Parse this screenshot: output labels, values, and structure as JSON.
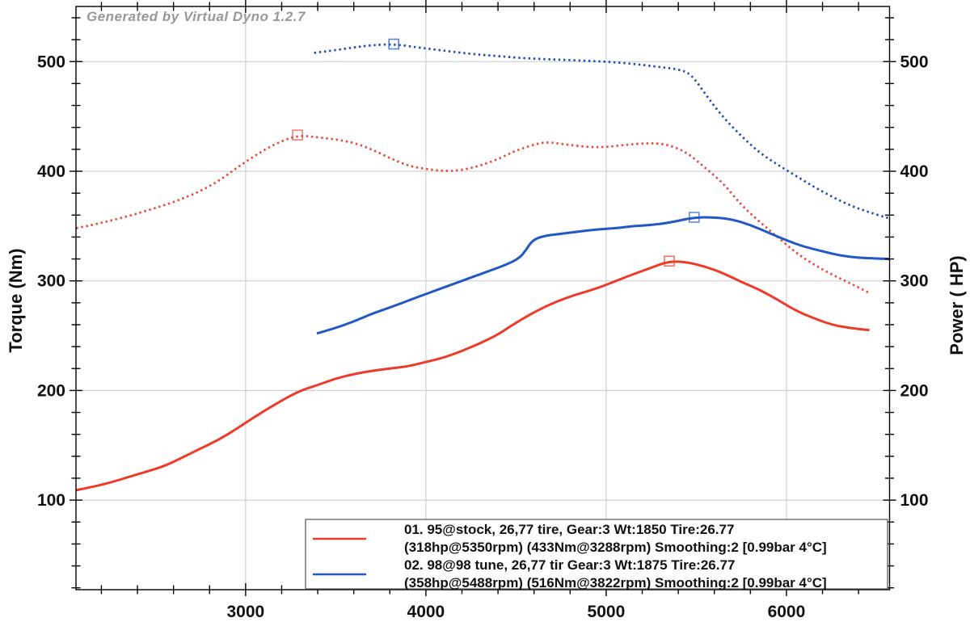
{
  "watermark": "Generated by Virtual Dyno 1.2.7",
  "axes": {
    "left_label": "Torque (Nm)",
    "right_label": "Power ( HP)",
    "x_major_ticks": [
      3000,
      4000,
      5000,
      6000
    ],
    "x_tick_labels": [
      "3000",
      "4000",
      "5000",
      "6000"
    ],
    "x_minor_step": 200,
    "y_major_ticks": [
      100,
      200,
      300,
      400,
      500
    ],
    "y_tick_labels": [
      "100",
      "200",
      "300",
      "400",
      "500"
    ],
    "y_minor_step": 20,
    "grid_color": "#c9c9c9",
    "axis_color": "#000000",
    "label_color": "#111111"
  },
  "legend": {
    "border_color": "#555555",
    "entries": [
      {
        "color": "#ee3a28",
        "line1": "01. 95@stock, 26,77 tire, Gear:3 Wt:1850 Tire:26.77",
        "line2": "(318hp@5350rpm) (433Nm@3288rpm) Smoothing:2 [0.99bar 4°C]"
      },
      {
        "color": "#2257c4",
        "line1": "02. 98@98 tune, 26,77 tir Gear:3 Wt:1875 Tire:26.77",
        "line2": "(358hp@5488rpm) (516Nm@3822rpm) Smoothing:2 [0.99bar 4°C]"
      }
    ]
  },
  "chart_data": {
    "type": "line",
    "x_axis": "Engine speed (rpm)",
    "x_range": [
      2059,
      6572
    ],
    "y_range": [
      18.3,
      550.3
    ],
    "ylabel_left": "Torque (Nm)",
    "ylabel_right": "Power ( HP)",
    "grid": true,
    "legend_position": "bottom-right",
    "series": [
      {
        "name": "run1-torque-nm",
        "label": "01. 95@stock torque (Nm)",
        "color": "#e8473a",
        "style": "dotted",
        "peak": {
          "x": 3288,
          "y": 433
        },
        "points": [
          [
            2060,
            348
          ],
          [
            2150,
            351
          ],
          [
            2250,
            355
          ],
          [
            2350,
            359
          ],
          [
            2450,
            364
          ],
          [
            2550,
            369
          ],
          [
            2650,
            375
          ],
          [
            2750,
            382
          ],
          [
            2850,
            391
          ],
          [
            2950,
            403
          ],
          [
            3050,
            414
          ],
          [
            3150,
            424
          ],
          [
            3288,
            433
          ],
          [
            3400,
            431
          ],
          [
            3500,
            429
          ],
          [
            3600,
            426
          ],
          [
            3700,
            420
          ],
          [
            3800,
            412
          ],
          [
            3900,
            405
          ],
          [
            4000,
            402
          ],
          [
            4100,
            400
          ],
          [
            4200,
            401
          ],
          [
            4300,
            405
          ],
          [
            4400,
            411
          ],
          [
            4500,
            419
          ],
          [
            4650,
            427
          ],
          [
            4750,
            425
          ],
          [
            4900,
            422
          ],
          [
            5000,
            422
          ],
          [
            5100,
            424
          ],
          [
            5250,
            426
          ],
          [
            5350,
            424
          ],
          [
            5450,
            417
          ],
          [
            5550,
            403
          ],
          [
            5650,
            389
          ],
          [
            5750,
            369
          ],
          [
            5850,
            354
          ],
          [
            5950,
            340
          ],
          [
            6050,
            326
          ],
          [
            6150,
            315
          ],
          [
            6250,
            306
          ],
          [
            6350,
            298
          ],
          [
            6460,
            289
          ]
        ]
      },
      {
        "name": "run2-torque-nm",
        "label": "02. 98@98 tune torque (Nm)",
        "color": "#1d4db4",
        "style": "dotted",
        "peak": {
          "x": 3822,
          "y": 516
        },
        "points": [
          [
            3380,
            508
          ],
          [
            3480,
            510
          ],
          [
            3600,
            513
          ],
          [
            3700,
            515
          ],
          [
            3822,
            516
          ],
          [
            3950,
            513
          ],
          [
            4050,
            511
          ],
          [
            4150,
            509
          ],
          [
            4250,
            507
          ],
          [
            4400,
            505
          ],
          [
            4550,
            503
          ],
          [
            4700,
            502
          ],
          [
            4850,
            501
          ],
          [
            5000,
            500
          ],
          [
            5150,
            498
          ],
          [
            5300,
            495
          ],
          [
            5400,
            493
          ],
          [
            5470,
            489
          ],
          [
            5560,
            468
          ],
          [
            5650,
            449
          ],
          [
            5750,
            432
          ],
          [
            5850,
            417
          ],
          [
            5950,
            406
          ],
          [
            6050,
            396
          ],
          [
            6150,
            386
          ],
          [
            6250,
            377
          ],
          [
            6350,
            369
          ],
          [
            6450,
            363
          ],
          [
            6570,
            357
          ]
        ]
      },
      {
        "name": "run1-power-hp",
        "label": "01. 95@stock power (HP)",
        "color": "#ee3a28",
        "style": "solid",
        "peak": {
          "x": 5350,
          "y": 318
        },
        "points": [
          [
            2060,
            109
          ],
          [
            2150,
            112
          ],
          [
            2250,
            116
          ],
          [
            2350,
            121
          ],
          [
            2450,
            126
          ],
          [
            2550,
            131
          ],
          [
            2650,
            139
          ],
          [
            2750,
            147
          ],
          [
            2850,
            155
          ],
          [
            2950,
            165
          ],
          [
            3050,
            176
          ],
          [
            3150,
            186
          ],
          [
            3288,
            199
          ],
          [
            3400,
            205
          ],
          [
            3500,
            211
          ],
          [
            3600,
            215
          ],
          [
            3700,
            218
          ],
          [
            3800,
            220
          ],
          [
            3900,
            222
          ],
          [
            4000,
            226
          ],
          [
            4100,
            230
          ],
          [
            4200,
            236
          ],
          [
            4300,
            243
          ],
          [
            4400,
            251
          ],
          [
            4500,
            262
          ],
          [
            4650,
            276
          ],
          [
            4800,
            286
          ],
          [
            4950,
            293
          ],
          [
            5100,
            303
          ],
          [
            5250,
            312
          ],
          [
            5350,
            318
          ],
          [
            5450,
            317
          ],
          [
            5550,
            313
          ],
          [
            5650,
            307
          ],
          [
            5750,
            299
          ],
          [
            5850,
            292
          ],
          [
            5950,
            283
          ],
          [
            6050,
            273
          ],
          [
            6150,
            266
          ],
          [
            6250,
            260
          ],
          [
            6350,
            257
          ],
          [
            6460,
            255
          ]
        ]
      },
      {
        "name": "run2-power-hp",
        "label": "02. 98@98 tune power (HP)",
        "color": "#2257c4",
        "style": "solid",
        "peak": {
          "x": 5488,
          "y": 358
        },
        "points": [
          [
            3395,
            252
          ],
          [
            3500,
            257
          ],
          [
            3600,
            263
          ],
          [
            3700,
            270
          ],
          [
            3822,
            277
          ],
          [
            3950,
            285
          ],
          [
            4050,
            291
          ],
          [
            4150,
            297
          ],
          [
            4250,
            303
          ],
          [
            4350,
            309
          ],
          [
            4450,
            315
          ],
          [
            4520,
            321
          ],
          [
            4555,
            328
          ],
          [
            4590,
            337
          ],
          [
            4650,
            341
          ],
          [
            4750,
            343
          ],
          [
            4850,
            345
          ],
          [
            4950,
            347
          ],
          [
            5050,
            348
          ],
          [
            5150,
            350
          ],
          [
            5250,
            351
          ],
          [
            5350,
            353
          ],
          [
            5488,
            358
          ],
          [
            5600,
            358
          ],
          [
            5700,
            356
          ],
          [
            5800,
            351
          ],
          [
            5900,
            344
          ],
          [
            6000,
            337
          ],
          [
            6100,
            331
          ],
          [
            6200,
            327
          ],
          [
            6300,
            323
          ],
          [
            6400,
            321
          ],
          [
            6570,
            320
          ]
        ]
      }
    ]
  }
}
